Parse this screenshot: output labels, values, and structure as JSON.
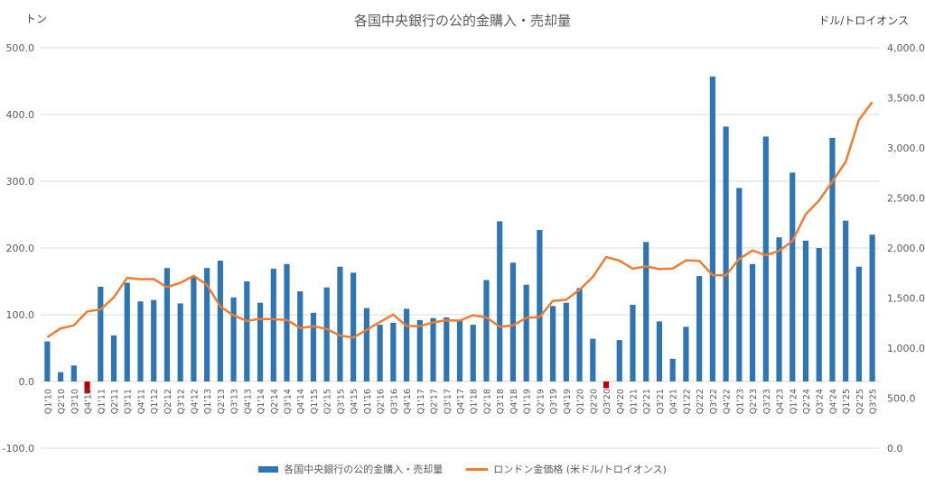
{
  "title": "各国中央銀行の公的金購入・売却量",
  "left_unit": "トン",
  "right_unit": "ドル/トロイオンス",
  "colors": {
    "bar": "#2e75b6",
    "bar_negative": "#c00000",
    "line": "#ed7d31",
    "grid": "#d9d9d9"
  },
  "chart_data": {
    "type": "bar",
    "categories": [
      "Q1'10",
      "Q2'10",
      "Q3'10",
      "Q4'10",
      "Q1'11",
      "Q2'11",
      "Q3'11",
      "Q4'11",
      "Q1'12",
      "Q2'12",
      "Q3'12",
      "Q4'12",
      "Q1'13",
      "Q2'13",
      "Q3'13",
      "Q4'13",
      "Q1'14",
      "Q2'14",
      "Q3'14",
      "Q4'14",
      "Q1'15",
      "Q2'15",
      "Q3'15",
      "Q4'15",
      "Q1'16",
      "Q2'16",
      "Q3'16",
      "Q4'16",
      "Q1'17",
      "Q2'17",
      "Q3'17",
      "Q4'17",
      "Q1'18",
      "Q2'18",
      "Q3'18",
      "Q4'18",
      "Q1'19",
      "Q2'19",
      "Q3'19",
      "Q4'19",
      "Q1'20",
      "Q2'20",
      "Q3'20",
      "Q4'20",
      "Q1'21",
      "Q2'21",
      "Q3'21",
      "Q4'21",
      "Q1'22",
      "Q2'22",
      "Q3'22",
      "Q4'22",
      "Q1'23",
      "Q2'23",
      "Q3'23",
      "Q4'23",
      "Q1'24",
      "Q2'24",
      "Q3'24",
      "Q4'24",
      "Q1'25",
      "Q2'25",
      "Q3'25"
    ],
    "series": [
      {
        "name": "各国中央銀行の公的金購入・売却量",
        "type": "bar",
        "axis": "left",
        "values": [
          60,
          14,
          24,
          -18,
          142,
          69,
          148,
          120,
          122,
          170,
          117,
          158,
          170,
          181,
          126,
          150,
          118,
          169,
          176,
          135,
          103,
          141,
          172,
          163,
          110,
          85,
          88,
          109,
          92,
          95,
          96,
          92,
          85,
          152,
          240,
          178,
          145,
          227,
          113,
          118,
          140,
          64,
          -10,
          62,
          115,
          209,
          90,
          34,
          82,
          158,
          457,
          382,
          290,
          176,
          367,
          216,
          313,
          211,
          200,
          365,
          241,
          172,
          220
        ]
      },
      {
        "name": "ロンドン金価格 (米ドル/トロイオンス)",
        "type": "line",
        "axis": "right",
        "values": [
          1109,
          1197,
          1227,
          1367,
          1386,
          1506,
          1702,
          1688,
          1690,
          1609,
          1652,
          1722,
          1632,
          1415,
          1326,
          1272,
          1293,
          1288,
          1282,
          1201,
          1218,
          1192,
          1124,
          1105,
          1183,
          1260,
          1335,
          1222,
          1219,
          1257,
          1278,
          1275,
          1329,
          1306,
          1213,
          1227,
          1304,
          1310,
          1472,
          1483,
          1583,
          1711,
          1909,
          1874,
          1794,
          1816,
          1789,
          1795,
          1877,
          1872,
          1729,
          1726,
          1890,
          1976,
          1928,
          1971,
          2070,
          2338,
          2474,
          2663,
          2860,
          3280,
          3457
        ]
      }
    ],
    "y_left": {
      "min": -100,
      "max": 500,
      "ticks": [
        "-100.0",
        "0.0",
        "100.0",
        "200.0",
        "300.0",
        "400.0",
        "500.0"
      ]
    },
    "y_right": {
      "min": 0,
      "max": 4000,
      "ticks": [
        "0.0",
        "500.0",
        "1,000.0",
        "1,500.0",
        "2,000.0",
        "2,500.0",
        "3,000.0",
        "3,500.0",
        "4,000.0"
      ]
    },
    "grid": true,
    "legend_position": "bottom"
  }
}
